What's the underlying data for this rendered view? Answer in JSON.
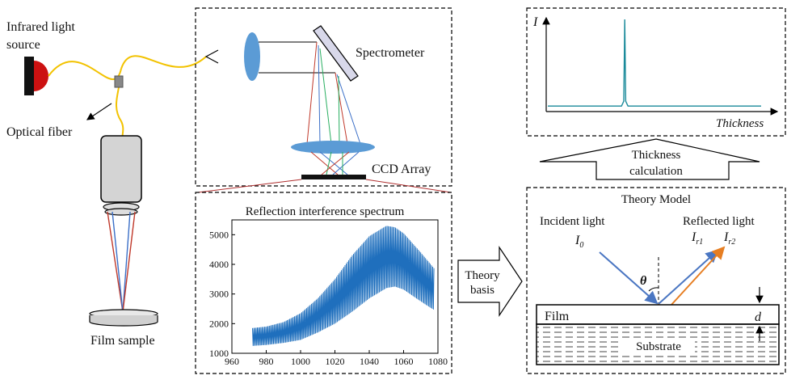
{
  "labels": {
    "source_line1": "Infrared light",
    "source_line2": "source",
    "optical_fiber": "Optical fiber",
    "film_sample": "Film sample",
    "spectrometer": "Spectrometer",
    "ccd_array": "CCD Array",
    "theory_basis_line1": "Theory",
    "theory_basis_line2": "basis",
    "thickness_calc_line1": "Thickness",
    "thickness_calc_line2": "calculation",
    "theory_model": "Theory Model",
    "incident_light": "Incident light",
    "reflected_light": "Reflected light",
    "i0": "I",
    "i0_sub": "0",
    "ir1": "I",
    "ir1_sub": "r1",
    "ir2": "I",
    "ir2_sub": "r2",
    "theta": "θ",
    "film": "Film",
    "substrate": "Substrate",
    "d": "d"
  },
  "colors": {
    "fiber": "#f2c200",
    "source": "#cc1111",
    "lens": "#5b9bd5",
    "spectrum": "#1f6fbd",
    "incident": "#4a76c2",
    "reflected": "#e67e22",
    "beam_red": "#c0392b",
    "beam_blue": "#3b6fc7",
    "beam_green": "#27ae60"
  },
  "chart_data": [
    {
      "type": "area",
      "title": "Reflection interference spectrum",
      "xlabel": "",
      "ylabel": "",
      "xlim": [
        960,
        1080
      ],
      "ylim": [
        1000,
        5500
      ],
      "xticks": [
        960,
        980,
        1000,
        1020,
        1040,
        1060,
        1080
      ],
      "yticks": [
        1000,
        2000,
        3000,
        4000,
        5000
      ],
      "series": [
        {
          "x": [
            972,
            980,
            990,
            1000,
            1010,
            1020,
            1030,
            1040,
            1050,
            1055,
            1060,
            1070,
            1078
          ],
          "upper": [
            1850,
            1900,
            2050,
            2350,
            2850,
            3500,
            4300,
            4950,
            5300,
            5250,
            5050,
            4400,
            3850
          ],
          "lower": [
            1250,
            1280,
            1350,
            1450,
            1700,
            2000,
            2400,
            2850,
            3200,
            3250,
            3150,
            2750,
            2450
          ]
        }
      ],
      "grid": false
    },
    {
      "type": "line",
      "title": "",
      "xlabel": "Thickness",
      "ylabel": "I",
      "peak_x_fraction": 0.34,
      "baseline_fraction": 0.06,
      "peak_fraction": 1.0
    }
  ]
}
